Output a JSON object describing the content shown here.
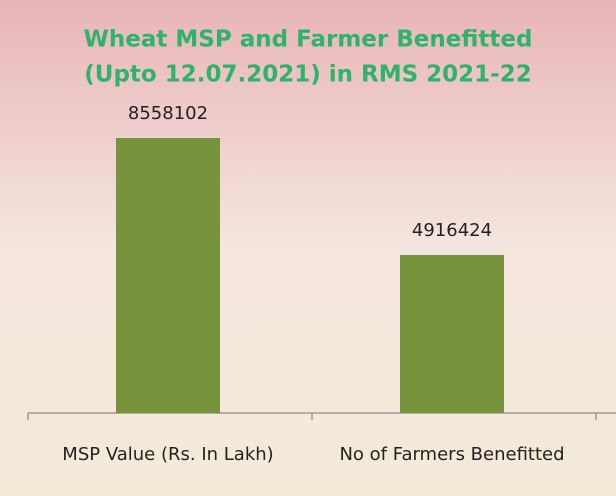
{
  "chart_data": {
    "type": "bar",
    "title": [
      "Wheat  MSP and Farmer Benefitted",
      "(Upto 12.07.2021) in RMS 2021-22"
    ],
    "categories": [
      "MSP Value (Rs. In Lakh)",
      "No of Farmers Benefitted"
    ],
    "values": [
      8558102,
      4916424
    ],
    "color": "#77933c"
  }
}
